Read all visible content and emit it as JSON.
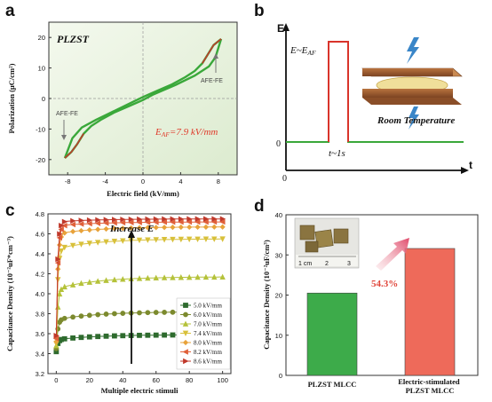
{
  "panels": {
    "a": "a",
    "b": "b",
    "c": "c",
    "d": "d"
  },
  "chart_data": [
    {
      "panel": "a",
      "type": "line",
      "title": "PLZST",
      "xlabel": "Electric field (kV/mm)",
      "ylabel": "Polarization (μC/cm²)",
      "xlim": [
        -10,
        10
      ],
      "ylim": [
        -25,
        25
      ],
      "xticks": [
        -8,
        -4,
        0,
        4,
        8
      ],
      "yticks": [
        -20,
        -10,
        0,
        10,
        20
      ],
      "annotations": [
        "AFE-FE",
        "AFE-FE"
      ],
      "eaf_main": "E",
      "eaf_sub": "AF",
      "eaf_rest": "=7.9 kV/mm",
      "colors": {
        "loop": "#3aa83a",
        "arrow": "#c0392b",
        "background": "#ecf5e3"
      },
      "series": [
        {
          "values_upper": [
            [
              -8.3,
              -19.5
            ],
            [
              -7.5,
              -13.0
            ],
            [
              -6.5,
              -9.5
            ],
            [
              -5.0,
              -7.0
            ],
            [
              -3.0,
              -4.0
            ],
            [
              -1.0,
              -1.0
            ],
            [
              0,
              0.5
            ],
            [
              1.5,
              2.5
            ],
            [
              3.0,
              4.5
            ],
            [
              4.5,
              7.0
            ],
            [
              5.5,
              9.0
            ],
            [
              6.3,
              11.5
            ],
            [
              7.0,
              15.0
            ],
            [
              7.5,
              17.5
            ],
            [
              8.3,
              19.5
            ]
          ],
          "values_lower": [
            [
              8.3,
              19.5
            ],
            [
              7.7,
              13.5
            ],
            [
              7.0,
              10.5
            ],
            [
              5.5,
              7.5
            ],
            [
              3.5,
              4.5
            ],
            [
              1.0,
              1.2
            ],
            [
              0,
              -0.5
            ],
            [
              -1.5,
              -2.5
            ],
            [
              -3.0,
              -4.5
            ],
            [
              -4.5,
              -7.0
            ],
            [
              -5.5,
              -9.0
            ],
            [
              -6.3,
              -11.5
            ],
            [
              -7.0,
              -15.0
            ],
            [
              -7.6,
              -17.5
            ],
            [
              -8.3,
              -19.5
            ]
          ]
        }
      ]
    },
    {
      "panel": "b",
      "type": "line",
      "ylabel": "E",
      "xlabel": "t",
      "origin_x": "0",
      "origin_y": "0",
      "pulse_main": "E~E",
      "pulse_sub": "AF",
      "pulse_width_label": "t~1s",
      "inset_caption": "Room Temperature",
      "colors": {
        "baseline": "#3aa83a",
        "pulse": "#d9342b",
        "plate": "#9a5a2e",
        "film": "#f0df9a"
      }
    },
    {
      "panel": "c",
      "type": "line",
      "xlabel": "Multiple electric stimuli",
      "ylabel": "Capacitance Density (10⁻²uF*cm⁻³)",
      "xlim": [
        -5,
        105
      ],
      "ylim": [
        3.2,
        4.8
      ],
      "xticks": [
        0,
        20,
        40,
        60,
        80,
        100
      ],
      "yticks": [
        3.2,
        3.4,
        3.6,
        3.8,
        4.0,
        4.2,
        4.4,
        4.6,
        4.8
      ],
      "annotation": "Increase E",
      "series": [
        {
          "name": "5.0 kV/mm",
          "color": "#2e6b2e",
          "marker": "square",
          "start": 3.42,
          "mid": 3.54,
          "end": 3.59
        },
        {
          "name": "6.0 kV/mm",
          "color": "#7c8a2e",
          "marker": "circle",
          "start": 3.45,
          "mid": 3.74,
          "end": 3.82
        },
        {
          "name": "7.0 kV/mm",
          "color": "#b5c23a",
          "marker": "triangle",
          "start": 3.48,
          "mid": 4.05,
          "end": 4.17
        },
        {
          "name": "7.4 kV/mm",
          "color": "#d8c03a",
          "marker": "triangle-down",
          "start": 3.5,
          "mid": 4.45,
          "end": 4.55
        },
        {
          "name": "8.0 kV/mm",
          "color": "#e8a23a",
          "marker": "diamond",
          "start": 3.52,
          "mid": 4.6,
          "end": 4.67
        },
        {
          "name": "8.2 kV/mm",
          "color": "#e0603a",
          "marker": "triangle-left",
          "start": 3.55,
          "mid": 4.68,
          "end": 4.72
        },
        {
          "name": "8.6 kV/mm",
          "color": "#c0392b",
          "marker": "triangle-right",
          "start": 3.58,
          "mid": 4.72,
          "end": 4.75
        }
      ]
    },
    {
      "panel": "d",
      "type": "bar",
      "categories": [
        "PLZST MLCC",
        "Electric-stimulated\nPLZST MLCC"
      ],
      "values": [
        20.5,
        31.6
      ],
      "colors": [
        "#3dab4a",
        "#ee6a5a"
      ],
      "ylabel": "Capacitance Density (10⁻²uF/cm³)",
      "ylim": [
        0,
        40
      ],
      "yticks": [
        0,
        10,
        20,
        30,
        40
      ],
      "annotation": "54.3%",
      "inset_scale_labels": [
        "1 cm",
        "2",
        "3"
      ]
    }
  ]
}
